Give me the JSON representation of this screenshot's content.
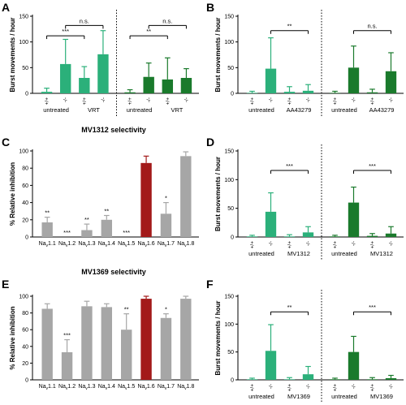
{
  "colors": {
    "light_green": "#2bb07a",
    "dark_green": "#1a7a2c",
    "grey": "#a6a6a6",
    "red": "#a31a1a"
  },
  "chart_data": [
    {
      "panel": "A",
      "type": "bar",
      "ylabel": "Burst movements / hour",
      "ylim": [
        0,
        150
      ],
      "yticks": [
        0,
        50,
        100,
        150
      ],
      "genotypes": [
        "+/+",
        "-/-",
        "+/+",
        "-/-",
        "+/+",
        "-/-",
        "+/+",
        "-/-"
      ],
      "groups": [
        {
          "label": "untreated",
          "bars": [
            0,
            1
          ]
        },
        {
          "label": "VRT",
          "bars": [
            2,
            3
          ]
        },
        {
          "label": "untreated",
          "bars": [
            4,
            5
          ]
        },
        {
          "label": "VRT",
          "bars": [
            6,
            7
          ]
        }
      ],
      "values": [
        3,
        57,
        30,
        76,
        2,
        32,
        27,
        30
      ],
      "errors": [
        7,
        48,
        22,
        46,
        5,
        27,
        42,
        18
      ],
      "bar_colors": [
        "light_green",
        "light_green",
        "light_green",
        "light_green",
        "dark_green",
        "dark_green",
        "dark_green",
        "dark_green"
      ],
      "divider_after": 3,
      "annotations": [
        {
          "from": 0,
          "to": 2,
          "y": 112,
          "text": "***"
        },
        {
          "from": 1,
          "to": 3,
          "y": 132,
          "text": "n.s."
        },
        {
          "from": 4,
          "to": 6,
          "y": 112,
          "text": "**"
        },
        {
          "from": 5,
          "to": 7,
          "y": 132,
          "text": "n.s."
        }
      ]
    },
    {
      "panel": "B",
      "type": "bar",
      "ylabel": "Burst movements / hour",
      "ylim": [
        0,
        150
      ],
      "yticks": [
        0,
        50,
        100,
        150
      ],
      "genotypes": [
        "+/+",
        "-/-",
        "+/+",
        "-/-",
        "+/+",
        "-/-",
        "+/+",
        "-/-"
      ],
      "groups": [
        {
          "label": "untreated",
          "bars": [
            0,
            1
          ]
        },
        {
          "label": "AA43279",
          "bars": [
            2,
            3
          ]
        },
        {
          "label": "untreated",
          "bars": [
            4,
            5
          ]
        },
        {
          "label": "AA43279",
          "bars": [
            6,
            7
          ]
        }
      ],
      "values": [
        1,
        48,
        3,
        5,
        1,
        50,
        2,
        43
      ],
      "errors": [
        3,
        60,
        10,
        12,
        3,
        42,
        6,
        36
      ],
      "bar_colors": [
        "light_green",
        "light_green",
        "light_green",
        "light_green",
        "dark_green",
        "dark_green",
        "dark_green",
        "dark_green"
      ],
      "divider_after": 3,
      "annotations": [
        {
          "from": 1,
          "to": 3,
          "y": 122,
          "text": "**"
        },
        {
          "from": 5,
          "to": 7,
          "y": 122,
          "text": "n.s."
        }
      ]
    },
    {
      "panel": "C",
      "type": "bar",
      "title": "MV1312 selectivity",
      "ylabel": "% Relative inhibition",
      "ylim": [
        0,
        100
      ],
      "yticks": [
        0,
        20,
        40,
        60,
        80,
        100
      ],
      "categories": [
        "Nav1.1",
        "Nav1.2",
        "Nav1.3",
        "Nav1.4",
        "Nav1.5",
        "Nav1.6",
        "Nav1.7",
        "Nav1.8"
      ],
      "values": [
        17,
        0,
        8,
        20,
        0,
        86,
        27,
        94
      ],
      "errors": [
        6,
        0,
        7,
        5,
        0,
        8,
        13,
        5
      ],
      "bar_colors": [
        "grey",
        "grey",
        "grey",
        "grey",
        "grey",
        "red",
        "grey",
        "grey"
      ],
      "significance": [
        "**",
        "***",
        "**",
        "**",
        "***",
        "",
        "*",
        ""
      ]
    },
    {
      "panel": "D",
      "type": "bar",
      "ylabel": "Burst movements / hour",
      "ylim": [
        0,
        150
      ],
      "yticks": [
        0,
        50,
        100,
        150
      ],
      "genotypes": [
        "+/+",
        "-/-",
        "+/+",
        "-/-",
        "+/+",
        "-/-",
        "+/+",
        "-/-"
      ],
      "groups": [
        {
          "label": "untreated",
          "bars": [
            0,
            1
          ]
        },
        {
          "label": "MV1312",
          "bars": [
            2,
            3
          ]
        },
        {
          "label": "untreated",
          "bars": [
            4,
            5
          ]
        },
        {
          "label": "MV1312",
          "bars": [
            6,
            7
          ]
        }
      ],
      "values": [
        1,
        44,
        1,
        8,
        1,
        60,
        2,
        6
      ],
      "errors": [
        2,
        33,
        3,
        10,
        2,
        27,
        4,
        12
      ],
      "bar_colors": [
        "light_green",
        "light_green",
        "light_green",
        "light_green",
        "dark_green",
        "dark_green",
        "dark_green",
        "dark_green"
      ],
      "divider_after": 3,
      "annotations": [
        {
          "from": 1,
          "to": 3,
          "y": 116,
          "text": "***"
        },
        {
          "from": 5,
          "to": 7,
          "y": 116,
          "text": "***"
        }
      ]
    },
    {
      "panel": "E",
      "type": "bar",
      "title": "MV1369 selectivity",
      "ylabel": "% Relative inhibition",
      "ylim": [
        0,
        100
      ],
      "yticks": [
        0,
        20,
        40,
        60,
        80,
        100
      ],
      "categories": [
        "Nav1.1",
        "Nav1.2",
        "Nav1.3",
        "Nav1.4",
        "Nav1.5",
        "Nav1.6",
        "Nav1.7",
        "Nav1.8"
      ],
      "values": [
        85,
        33,
        88,
        87,
        60,
        97,
        74,
        97
      ],
      "errors": [
        6,
        15,
        6,
        4,
        19,
        3,
        5,
        3
      ],
      "bar_colors": [
        "grey",
        "grey",
        "grey",
        "grey",
        "grey",
        "red",
        "grey",
        "grey"
      ],
      "significance": [
        "",
        "***",
        "",
        "",
        "**",
        "",
        "*",
        ""
      ]
    },
    {
      "panel": "F",
      "type": "bar",
      "ylabel": "Burst movements / hour",
      "ylim": [
        0,
        150
      ],
      "yticks": [
        0,
        50,
        100,
        150
      ],
      "genotypes": [
        "+/+",
        "-/-",
        "+/+",
        "-/-",
        "+/+",
        "-/-",
        "+/+",
        "-/-"
      ],
      "groups": [
        {
          "label": "untreated",
          "bars": [
            0,
            1
          ]
        },
        {
          "label": "MV1369",
          "bars": [
            2,
            3
          ]
        },
        {
          "label": "untreated",
          "bars": [
            4,
            5
          ]
        },
        {
          "label": "MV1369",
          "bars": [
            6,
            7
          ]
        }
      ],
      "values": [
        1,
        52,
        1,
        10,
        1,
        50,
        1,
        3
      ],
      "errors": [
        2,
        47,
        3,
        14,
        2,
        28,
        3,
        5
      ],
      "bar_colors": [
        "light_green",
        "light_green",
        "light_green",
        "light_green",
        "dark_green",
        "dark_green",
        "dark_green",
        "dark_green"
      ],
      "divider_after": 3,
      "annotations": [
        {
          "from": 1,
          "to": 3,
          "y": 122,
          "text": "**"
        },
        {
          "from": 5,
          "to": 7,
          "y": 122,
          "text": "***"
        }
      ]
    }
  ]
}
